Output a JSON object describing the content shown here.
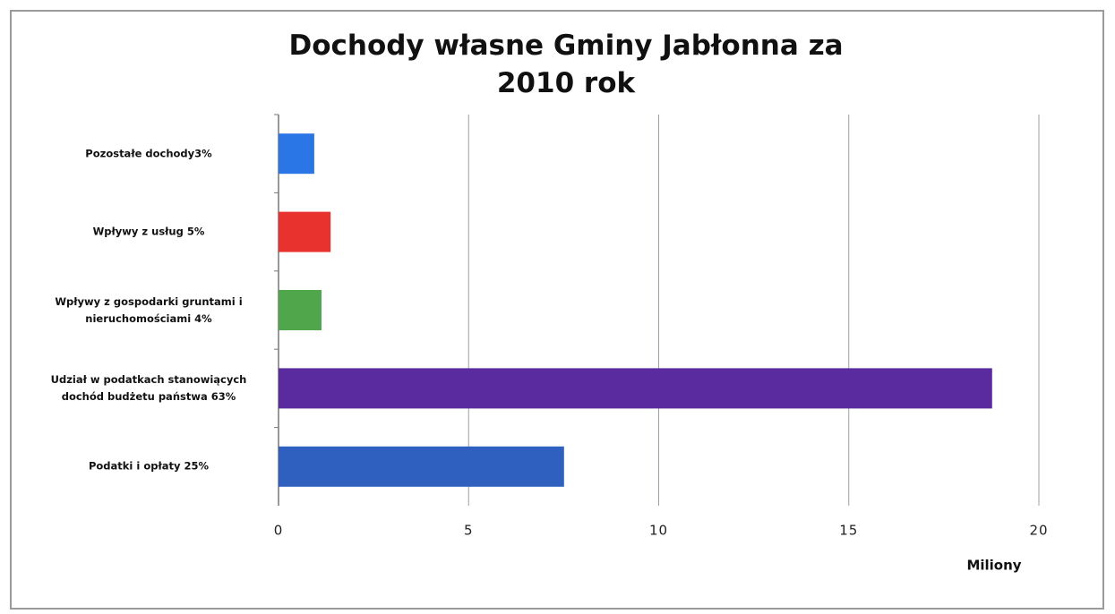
{
  "chart_data": {
    "type": "bar",
    "orientation": "horizontal",
    "title": "Dochody własne Gminy Jabłonna za 2010 rok",
    "xlabel": "Miliony",
    "categories": [
      "Pozostałe dochody3%",
      "Wpływy z usług 5%",
      "Wpływy z gospodarki gruntami i nieruchomościami 4%",
      "Udział w podatkach stanowiących dochód budżetu państwa 63%",
      "Podatki i opłaty 25%"
    ],
    "values": [
      0.94,
      1.37,
      1.13,
      18.77,
      7.51
    ],
    "colors": [
      "#2b76e6",
      "#e8322e",
      "#4fa64b",
      "#5a2b9e",
      "#2f5fbf"
    ],
    "xlim": [
      0,
      20
    ],
    "xticks": [
      0,
      5,
      10,
      15,
      20
    ],
    "grid": true
  }
}
